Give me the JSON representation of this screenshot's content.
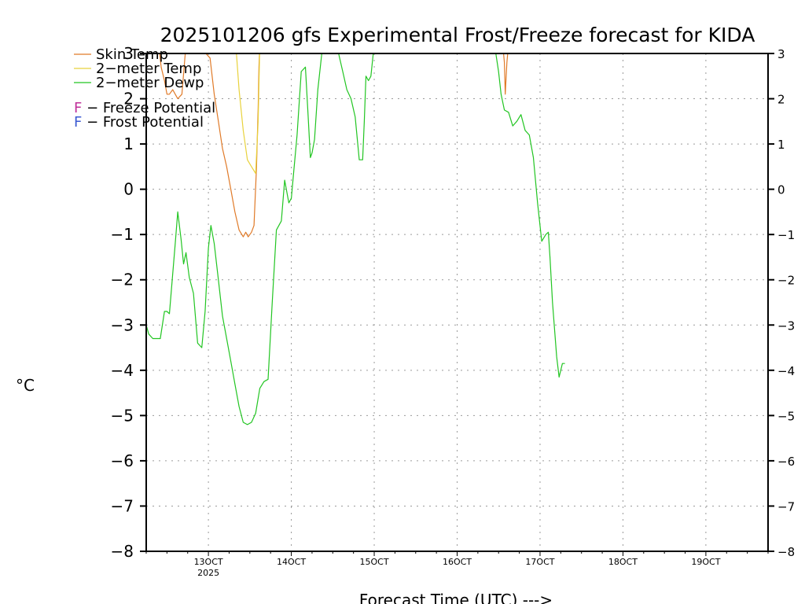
{
  "chart_data": {
    "type": "line",
    "title": "2025101206 gfs Experimental Frost/Freeze forecast for KIDA",
    "ylabel": "°C",
    "xlabel": "Forecast Time (UTC) --->",
    "ylim": [
      -8,
      3
    ],
    "xlim": [
      12.25,
      19.75
    ],
    "yticks": [
      -8,
      -7,
      -6,
      -5,
      -4,
      -3,
      -2,
      -1,
      0,
      1,
      2,
      3
    ],
    "ytick_labels": [
      "−8",
      "−7",
      "−6",
      "−5",
      "−4",
      "−3",
      "−2",
      "−1",
      "0",
      "1",
      "2",
      "3"
    ],
    "xticks": [
      {
        "x": 13,
        "label": "13OCT",
        "sub": "2025"
      },
      {
        "x": 14,
        "label": "14OCT",
        "sub": ""
      },
      {
        "x": 15,
        "label": "15OCT",
        "sub": ""
      },
      {
        "x": 16,
        "label": "16OCT",
        "sub": ""
      },
      {
        "x": 17,
        "label": "17OCT",
        "sub": ""
      },
      {
        "x": 18,
        "label": "18OCT",
        "sub": ""
      },
      {
        "x": 19,
        "label": "19OCT",
        "sub": ""
      }
    ],
    "grid": true,
    "legend_items": [
      {
        "symbol": "line",
        "color": "#e07a28",
        "label": "Skin Temp"
      },
      {
        "symbol": "line",
        "color": "#e8d23c",
        "label": "2−meter Temp"
      },
      {
        "symbol": "line",
        "color": "#22c522",
        "label": "2−meter Dewp"
      },
      {
        "symbol": "F",
        "color": "#c0309a",
        "label": " − Freeze Potential"
      },
      {
        "symbol": "F",
        "color": "#3c5ad2",
        "label": " − Frost Potential"
      }
    ],
    "series": [
      {
        "name": "Skin Temp",
        "color": "#e07a28",
        "x": [
          12.4,
          12.43,
          12.47,
          12.5,
          12.53,
          12.57,
          12.6,
          12.63,
          12.68,
          12.73,
          12.78,
          12.82,
          12.87,
          12.92,
          12.97,
          13.02,
          13.07,
          13.12,
          13.17,
          13.22,
          13.27,
          13.32,
          13.37,
          13.42,
          13.45,
          13.48,
          13.52,
          13.55,
          13.58,
          13.6,
          13.61,
          13.62
        ],
        "y": [
          3.2,
          2.7,
          2.4,
          2.1,
          2.1,
          2.2,
          2.1,
          2.0,
          2.1,
          3.2,
          3.4,
          3.5,
          3.4,
          3.2,
          3.0,
          2.9,
          2.1,
          1.5,
          0.9,
          0.5,
          0.0,
          -0.5,
          -0.9,
          -1.05,
          -0.95,
          -1.05,
          -0.95,
          -0.8,
          0.5,
          1.8,
          2.7,
          3.2
        ],
        "dashed": false
      },
      {
        "name": "Skin Temp (17OCT)",
        "color": "#e07a28",
        "x": [
          16.55,
          16.57,
          16.58,
          16.6,
          16.62
        ],
        "y": [
          3.2,
          2.8,
          2.1,
          2.8,
          3.2
        ],
        "dashed": false
      },
      {
        "name": "2-meter Temp",
        "color": "#e8d23c",
        "x": [
          13.33,
          13.37,
          13.42,
          13.47,
          13.52,
          13.57,
          13.6,
          13.62
        ],
        "y": [
          3.2,
          2.2,
          1.3,
          0.65,
          0.5,
          0.35,
          1.5,
          3.2
        ],
        "dashed": false
      },
      {
        "name": "2-meter Dewp",
        "color": "#22c522",
        "x": [
          12.25,
          12.28,
          12.33,
          12.38,
          12.42,
          12.47,
          12.5,
          12.53,
          12.6,
          12.63,
          12.67,
          12.7,
          12.73,
          12.77,
          12.82,
          12.87,
          12.92,
          12.96,
          13.0,
          13.03,
          13.07,
          13.12,
          13.17,
          13.22,
          13.27,
          13.32,
          13.37,
          13.42,
          13.47,
          13.52,
          13.57,
          13.62,
          13.67,
          13.72,
          13.77,
          13.82,
          13.88,
          13.92,
          13.97,
          14.0,
          14.03,
          14.07,
          14.12,
          14.17,
          14.2,
          14.23,
          14.25,
          14.28,
          14.32,
          14.38,
          14.4,
          14.43,
          14.48,
          14.52,
          14.57,
          14.62,
          14.67,
          14.72,
          14.77,
          14.82,
          14.86,
          14.88,
          14.9,
          14.93,
          14.96,
          15.0,
          15.02,
          15.04,
          16.45,
          16.5,
          16.53,
          16.57,
          16.62,
          16.67,
          16.72,
          16.77,
          16.82,
          16.87,
          16.92,
          16.97,
          17.02,
          17.07,
          17.1,
          17.12,
          17.15,
          17.2,
          17.23,
          17.27,
          17.3
        ],
        "y": [
          -3.0,
          -3.2,
          -3.3,
          -3.3,
          -3.3,
          -2.7,
          -2.7,
          -2.75,
          -1.2,
          -0.5,
          -1.1,
          -1.65,
          -1.4,
          -1.95,
          -2.3,
          -3.4,
          -3.5,
          -2.7,
          -1.3,
          -0.8,
          -1.2,
          -2.0,
          -2.8,
          -3.3,
          -3.8,
          -4.3,
          -4.8,
          -5.15,
          -5.2,
          -5.15,
          -4.95,
          -4.4,
          -4.25,
          -4.2,
          -2.5,
          -0.9,
          -0.7,
          0.2,
          -0.3,
          -0.2,
          0.4,
          1.2,
          2.6,
          2.7,
          1.7,
          0.7,
          0.8,
          1.1,
          2.2,
          3.2,
          3.5,
          3.7,
          3.5,
          3.2,
          3.0,
          2.6,
          2.2,
          2.0,
          1.6,
          0.65,
          0.65,
          1.5,
          2.5,
          2.4,
          2.5,
          3.2,
          3.5,
          3.6,
          3.2,
          2.6,
          2.1,
          1.75,
          1.7,
          1.4,
          1.5,
          1.65,
          1.3,
          1.2,
          0.7,
          -0.3,
          -1.15,
          -1.0,
          -0.95,
          -1.5,
          -2.5,
          -3.7,
          -4.15,
          -3.85,
          -3.85
        ],
        "dashed": false
      }
    ]
  }
}
